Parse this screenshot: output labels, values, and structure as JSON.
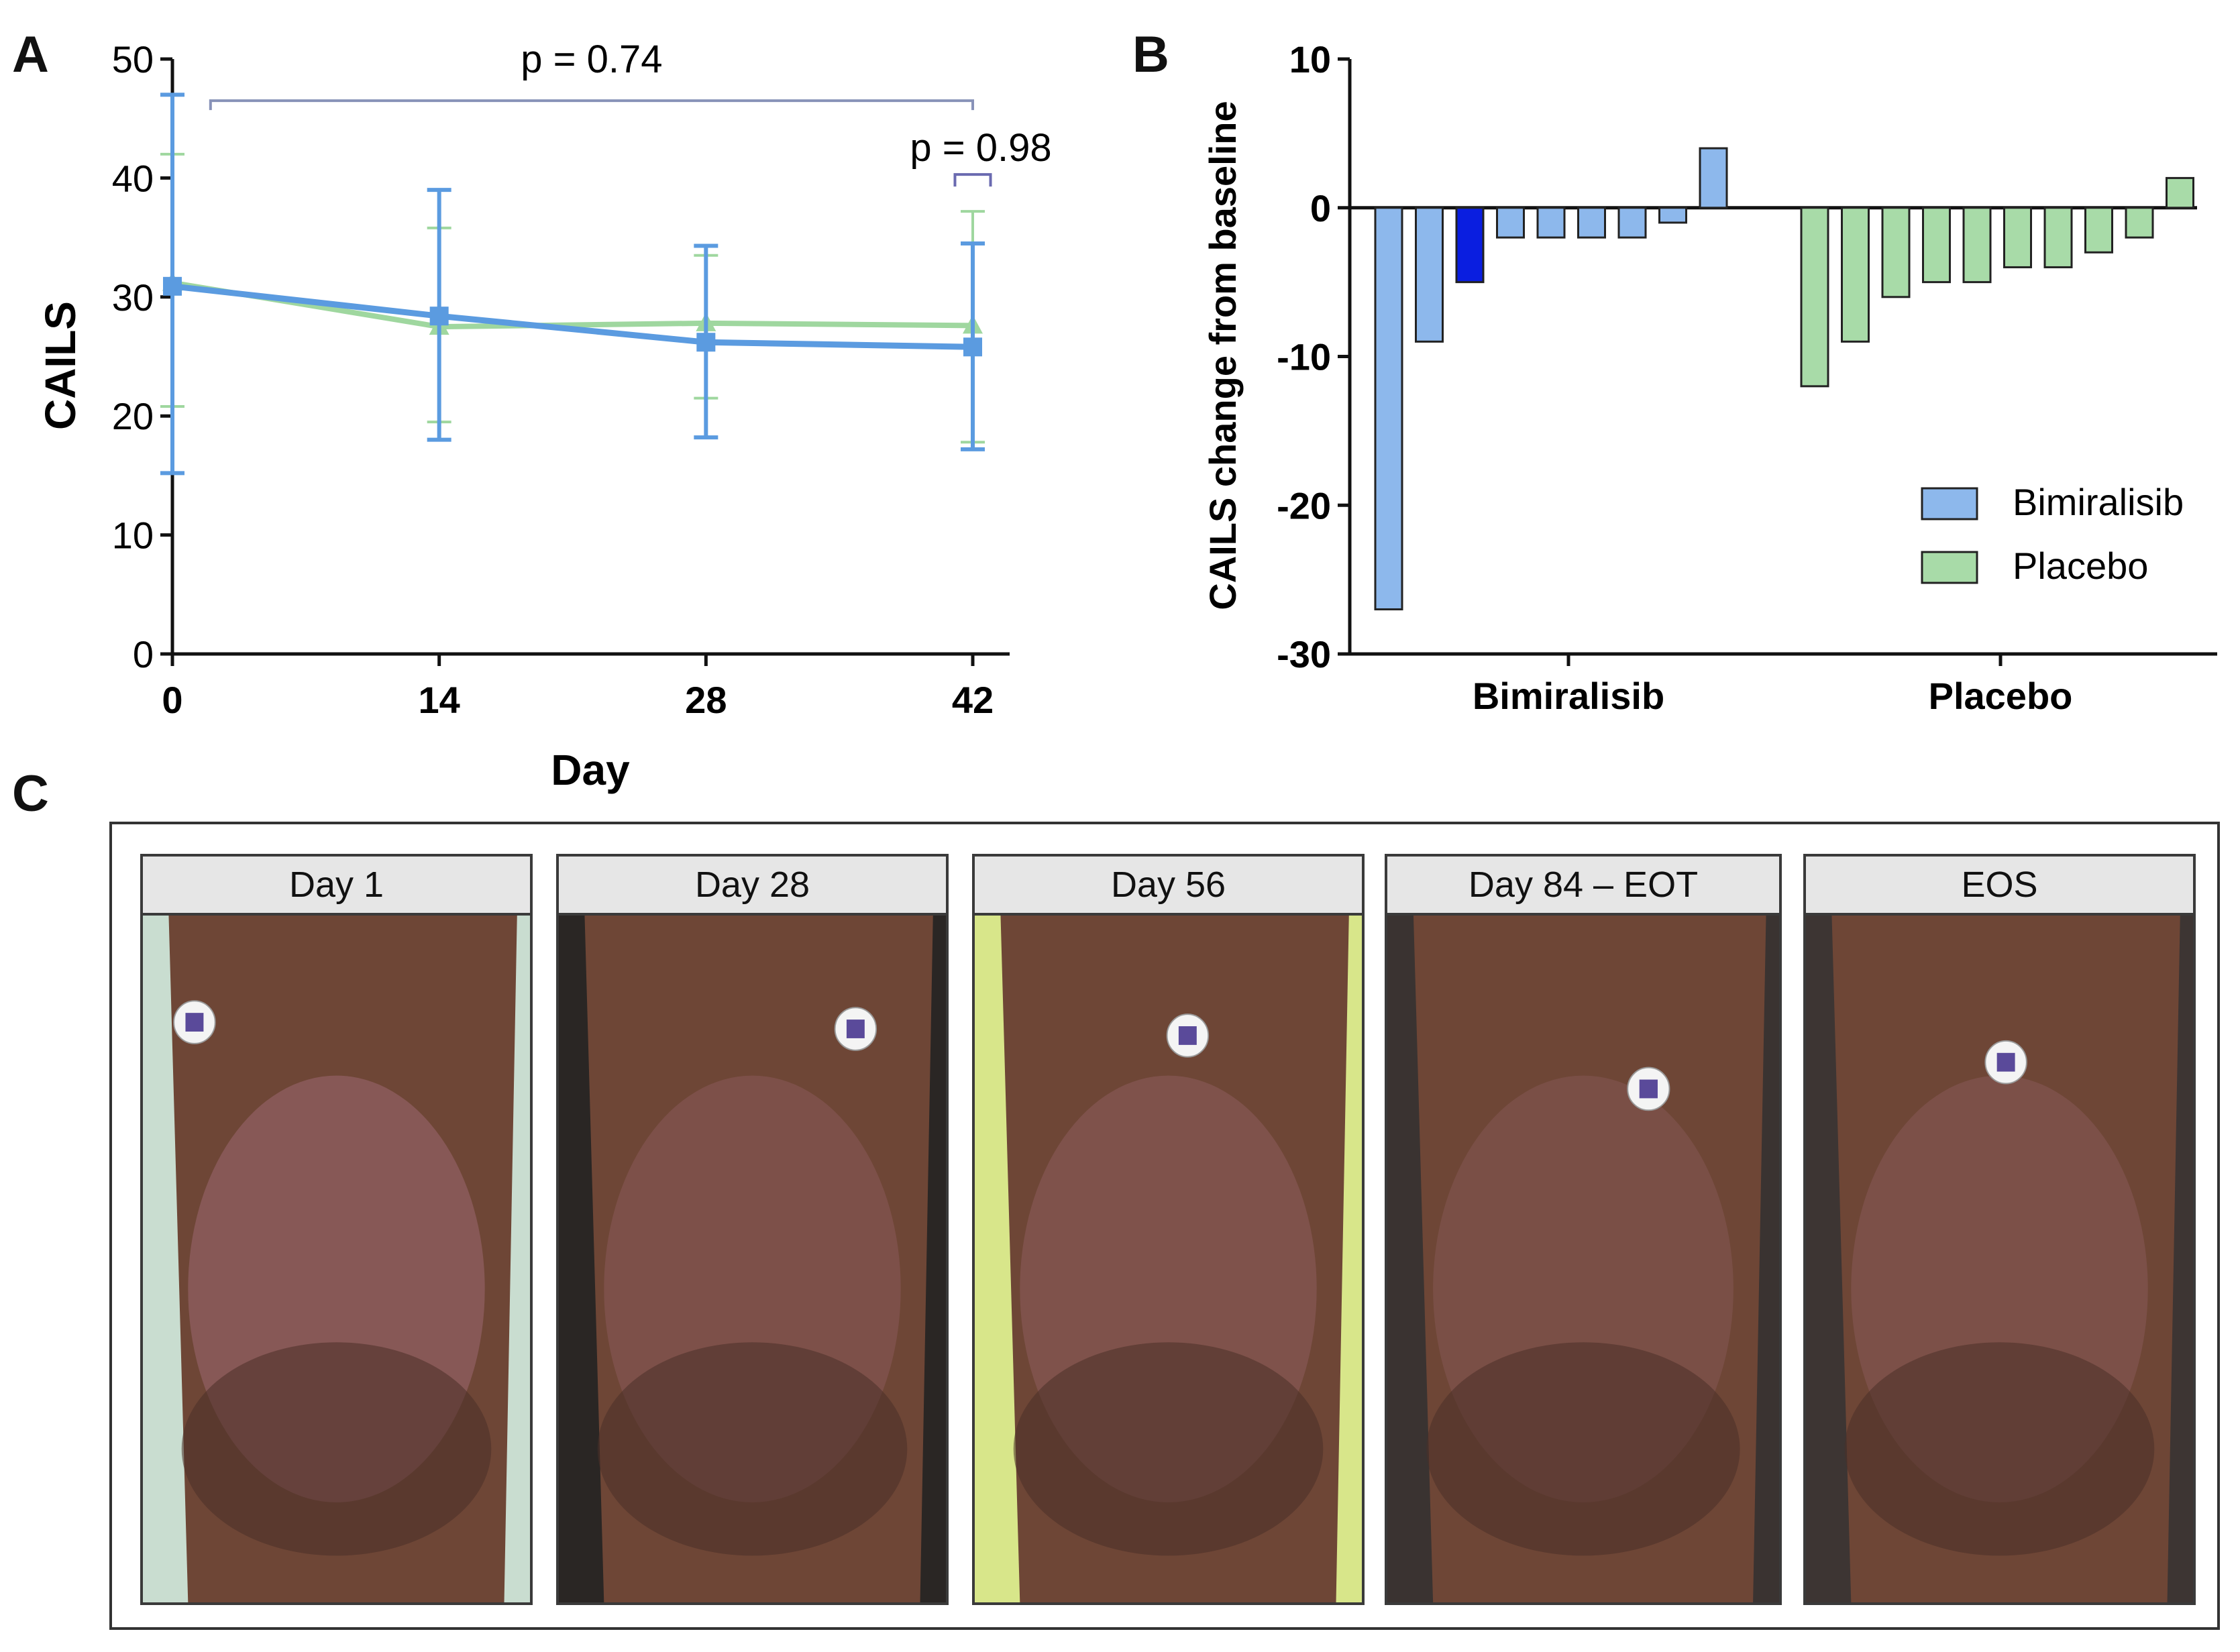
{
  "panels": {
    "a_letter": "A",
    "b_letter": "B",
    "c_letter": "C"
  },
  "chart_data": [
    {
      "panel": "A",
      "type": "line",
      "xlabel": "Day",
      "ylabel": "CAILS",
      "x": [
        0,
        14,
        28,
        42
      ],
      "xticks": [
        0,
        14,
        28,
        42
      ],
      "yticks": [
        0,
        10,
        20,
        30,
        40,
        50
      ],
      "ylim": [
        0,
        50
      ],
      "xlim": [
        0,
        44
      ],
      "grid": false,
      "series": [
        {
          "color": "#9fd79f",
          "values": [
            31.2,
            27.5,
            27.8,
            27.6
          ],
          "err_low": [
            20.8,
            19.5,
            21.5,
            17.8
          ],
          "err_high": [
            42,
            35.8,
            33.5,
            37.2
          ]
        },
        {
          "color": "#5b9be0",
          "values": [
            30.9,
            28.4,
            26.2,
            25.8
          ],
          "err_low": [
            15.2,
            18,
            18.2,
            17.2
          ],
          "err_high": [
            47,
            39,
            34.3,
            34.5
          ]
        }
      ],
      "annotations": [
        {
          "text": "p = 0.74",
          "from": 2,
          "to": 42,
          "level": 46.5
        },
        {
          "text": "p = 0.98",
          "from": 41.7,
          "to": 42.3,
          "level": 40.3
        }
      ]
    },
    {
      "panel": "B",
      "type": "bar",
      "ylabel": "CAILS change from baseline",
      "ylim": [
        -30,
        10
      ],
      "yticks": [
        10,
        0,
        -10,
        -20,
        -30
      ],
      "grid": false,
      "legend_position": "bottom-right",
      "groups": [
        "Bimiralisib",
        "Placebo"
      ],
      "series": [
        {
          "name": "Bimiralisib",
          "color": "#8db8ec",
          "values": [
            -27,
            -9,
            -5,
            -2,
            -2,
            -2,
            -2,
            -1,
            4
          ],
          "highlight_index": 2,
          "highlight_color": "#0a1ee0"
        },
        {
          "name": "Placebo",
          "color": "#a8dba8",
          "values": [
            -12,
            -9,
            -6,
            -5,
            -5,
            -4,
            -4,
            -3,
            -2,
            2
          ]
        }
      ]
    }
  ],
  "photos": [
    {
      "label": "Day 1"
    },
    {
      "label": "Day 28"
    },
    {
      "label": "Day 56"
    },
    {
      "label": "Day 84 – EOT"
    },
    {
      "label": "EOS"
    }
  ],
  "colors": {
    "skin_dark": "#4a3028",
    "skin_mid": "#6e4636",
    "lesion": "#8a5a5a",
    "sticker": "#f4f4f4"
  }
}
